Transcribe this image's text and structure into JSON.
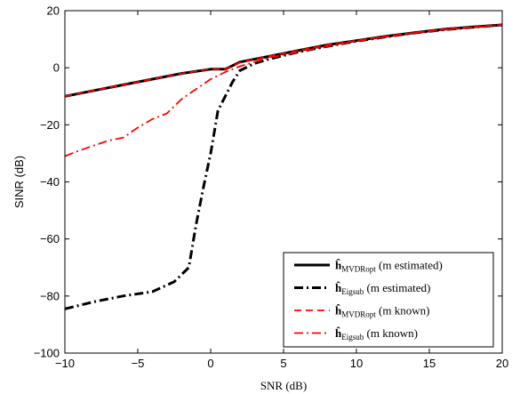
{
  "chart_data": {
    "type": "line",
    "xlabel": "SNR (dB)",
    "ylabel": "SINR (dB)",
    "xlim": [
      -10,
      20
    ],
    "ylim": [
      -100,
      20
    ],
    "xticks": [
      -10,
      -5,
      0,
      5,
      10,
      15,
      20
    ],
    "yticks": [
      20,
      0,
      -20,
      -40,
      -60,
      -80,
      -100
    ],
    "xtick_labels": [
      "−10",
      "−5",
      "0",
      "5",
      "10",
      "15",
      "20"
    ],
    "ytick_labels": [
      "20",
      "0",
      "−20",
      "−40",
      "−60",
      "−80",
      "−100"
    ],
    "grid": false,
    "legend_position": "bottom-right",
    "series": [
      {
        "name": "ĥMVDRopt (m estimated)",
        "name_base": "ĥ",
        "name_sub": "MVDRopt",
        "name_rest": " (m estimated)",
        "color": "#000000",
        "style": "solid",
        "width": 3,
        "x": [
          -10,
          -8,
          -6,
          -4,
          -2,
          0,
          1,
          2,
          4,
          6,
          8,
          10,
          12,
          14,
          16,
          18,
          20
        ],
        "y": [
          -10,
          -8,
          -6,
          -4,
          -2,
          -0.5,
          -0.5,
          2,
          4,
          6,
          8,
          9.5,
          11,
          12.3,
          13.5,
          14.3,
          15
        ]
      },
      {
        "name": "ĥEigsub (m estimated)",
        "name_base": "ĥ",
        "name_sub": "Eigsub",
        "name_rest": " (m estimated)",
        "color": "#000000",
        "style": "dashdot",
        "width": 3,
        "x": [
          -10,
          -8,
          -6,
          -4,
          -2.5,
          -1.5,
          -1,
          -0.5,
          0,
          0.5,
          1,
          1.5,
          2,
          3,
          4,
          6,
          8,
          10,
          12,
          14,
          16,
          18,
          20
        ],
        "y": [
          -84.5,
          -82,
          -80,
          -78.5,
          -75,
          -70,
          -55,
          -42,
          -30,
          -15,
          -10,
          -5,
          -1,
          1.5,
          3,
          5.5,
          7.5,
          9.3,
          10.8,
          12.2,
          13.3,
          14.2,
          15
        ]
      },
      {
        "name": "ĥMVDRopt (m known)",
        "name_base": "ĥ",
        "name_sub": "MVDRopt",
        "name_rest": " (m known)",
        "color": "#ff0000",
        "style": "dashed",
        "width": 1.8,
        "x": [
          -10,
          -8,
          -6,
          -4,
          -2,
          0,
          1,
          2,
          4,
          6,
          8,
          10,
          12,
          14,
          16,
          18,
          20
        ],
        "y": [
          -10,
          -8,
          -6,
          -4,
          -2,
          -0.5,
          -0.5,
          1.8,
          4,
          6,
          8,
          9.5,
          11,
          12.3,
          13.5,
          14.3,
          15
        ]
      },
      {
        "name": "ĥEigsub (m known)",
        "name_base": "ĥ",
        "name_sub": "Eigsub",
        "name_rest": " (m known)",
        "color": "#ff0000",
        "style": "dashdot",
        "width": 1.8,
        "x": [
          -10,
          -9,
          -7,
          -6,
          -5,
          -4,
          -3,
          -2,
          -1,
          0,
          1,
          2,
          4,
          6,
          8,
          10,
          12,
          14,
          16,
          18,
          20
        ],
        "y": [
          -31,
          -29,
          -25.5,
          -24.5,
          -21,
          -18,
          -16,
          -11,
          -7.5,
          -4,
          -1.5,
          0.5,
          3.5,
          5.5,
          7.5,
          9.3,
          10.8,
          12.2,
          13.3,
          14.2,
          15
        ]
      }
    ]
  }
}
